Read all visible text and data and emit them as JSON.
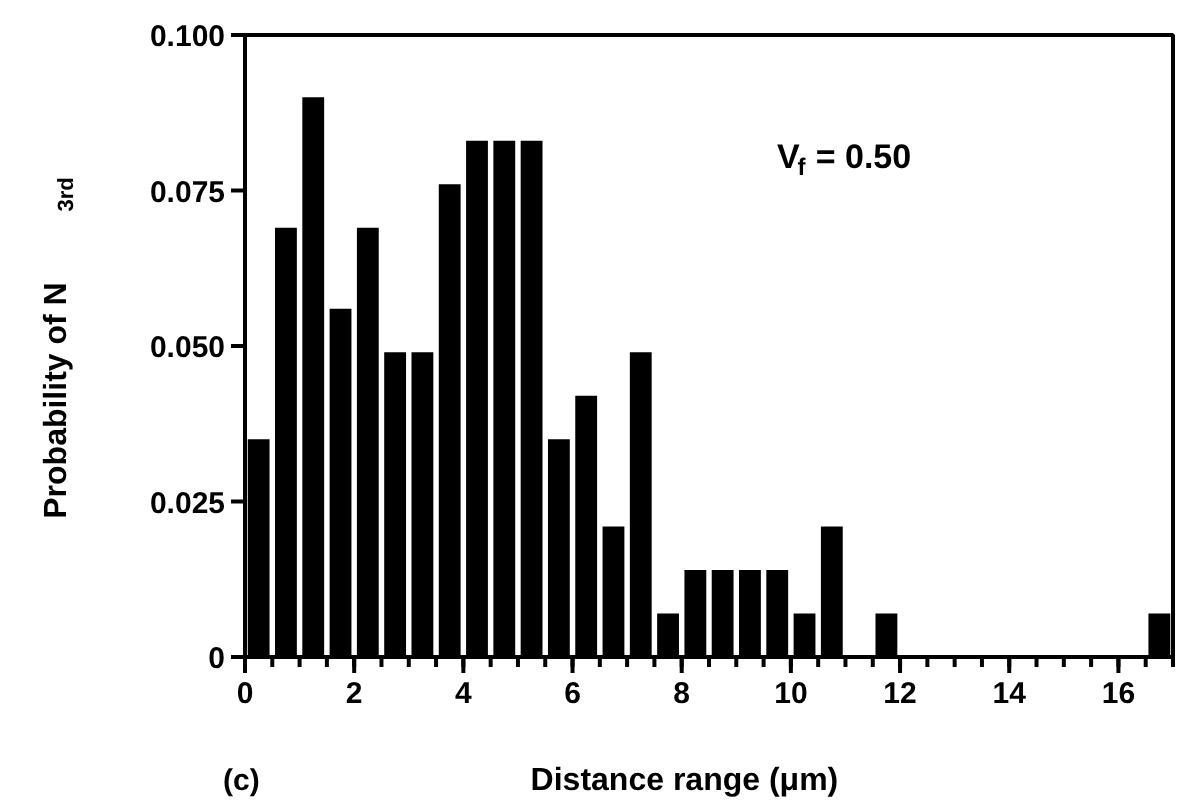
{
  "chart_data": {
    "type": "histogram",
    "xlabel": "Distance range (μm)",
    "ylabel": "Probability of N$_{3rd}$",
    "bins": [
      0,
      0.5,
      1,
      1.5,
      2,
      2.5,
      3,
      3.5,
      4,
      4.5,
      5,
      5.5,
      6,
      6.5,
      7,
      7.5,
      8,
      8.5,
      9,
      9.5,
      10,
      10.5,
      11,
      11.5,
      12,
      12.5,
      13,
      13.5,
      14,
      14.5,
      15,
      15.5,
      16,
      16.5,
      17
    ],
    "values": [
      0.035,
      0.069,
      0.09,
      0.056,
      0.069,
      0.049,
      0.049,
      0.076,
      0.083,
      0.083,
      0.083,
      0.035,
      0.042,
      0.021,
      0.049,
      0.007,
      0.014,
      0.014,
      0.014,
      0.014,
      0.007,
      0.021,
      0,
      0.007,
      0,
      0,
      0,
      0,
      0,
      0,
      0,
      0,
      0,
      0.007
    ],
    "color": "#000000",
    "xlim": [
      0,
      17
    ],
    "ylim": [
      0,
      0.1
    ],
    "xticks": [
      0,
      2,
      4,
      6,
      8,
      10,
      12,
      14,
      16
    ],
    "yticks": [
      0,
      0.025,
      {
        "value": 0.05,
        "label": "0.050"
      },
      {
        "value": 0.075,
        "label": "0.075"
      },
      {
        "value": 0.1,
        "label": "0.100"
      }
    ],
    "grid": false,
    "annotations": [
      "V$_{f}$ = 0.50",
      "(c)"
    ]
  }
}
